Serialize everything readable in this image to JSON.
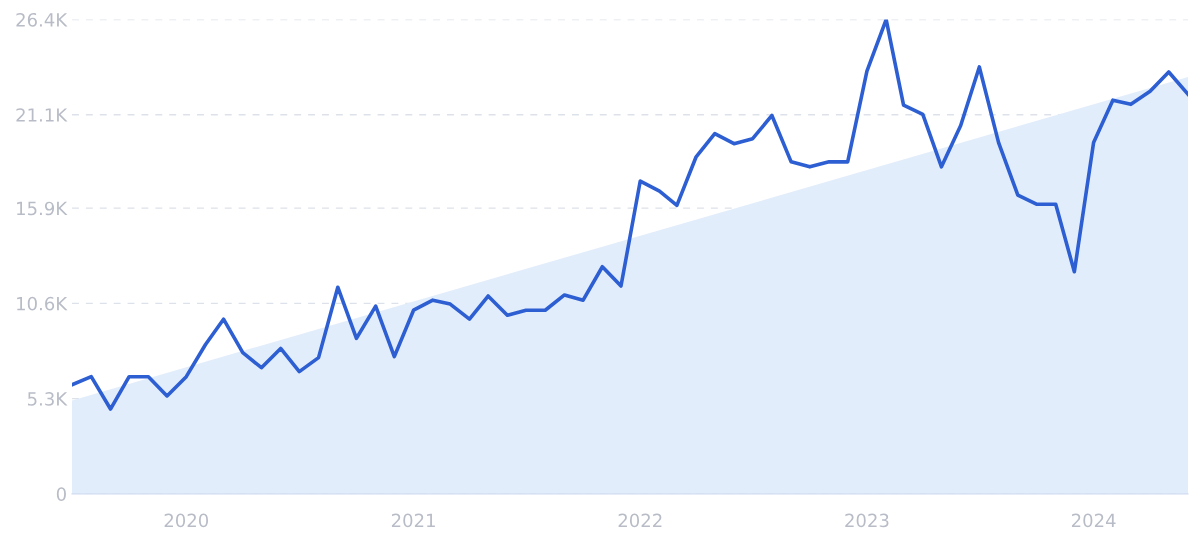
{
  "chart_data": {
    "type": "line",
    "x": [
      "2019-07",
      "2019-08",
      "2019-09",
      "2019-10",
      "2019-11",
      "2019-12",
      "2020-01",
      "2020-02",
      "2020-03",
      "2020-04",
      "2020-05",
      "2020-06",
      "2020-07",
      "2020-08",
      "2020-09",
      "2020-10",
      "2020-11",
      "2020-12",
      "2021-01",
      "2021-02",
      "2021-03",
      "2021-04",
      "2021-05",
      "2021-06",
      "2021-07",
      "2021-08",
      "2021-09",
      "2021-10",
      "2021-11",
      "2021-12",
      "2022-01",
      "2022-02",
      "2022-03",
      "2022-04",
      "2022-05",
      "2022-06",
      "2022-07",
      "2022-08",
      "2022-09",
      "2022-10",
      "2022-11",
      "2022-12",
      "2023-01",
      "2023-02",
      "2023-03",
      "2023-04",
      "2023-05",
      "2023-06",
      "2023-07",
      "2023-08",
      "2023-09",
      "2023-10",
      "2023-11",
      "2023-12",
      "2024-01",
      "2024-02",
      "2024-03",
      "2024-04",
      "2024-05",
      "2024-06"
    ],
    "series": [
      {
        "type": "area",
        "color": "#e2edfb",
        "x": [
          "2019-07",
          "2024-06"
        ],
        "values": [
          5200,
          23200
        ]
      },
      {
        "color": "#2d5fd3",
        "values": [
          6070,
          6520,
          4720,
          6520,
          6520,
          5450,
          6520,
          8310,
          9720,
          7860,
          7020,
          8090,
          6800,
          7580,
          11500,
          8650,
          10450,
          7640,
          10220,
          10780,
          10560,
          9720,
          11010,
          9940,
          10220,
          10220,
          11070,
          10780,
          12640,
          11570,
          17410,
          16850,
          16060,
          18760,
          20050,
          19490,
          19770,
          21060,
          18480,
          18200,
          18480,
          18480,
          23530,
          26400,
          21630,
          21120,
          18200,
          20500,
          23760,
          19550,
          16630,
          16120,
          16120,
          12360,
          19550,
          21910,
          21680,
          22410,
          23480,
          22240
        ]
      }
    ],
    "xlim": [
      "2019-07",
      "2024-06"
    ],
    "xticks": [
      {
        "value": "2020-01",
        "label": "2020"
      },
      {
        "value": "2021-01",
        "label": "2021"
      },
      {
        "value": "2022-01",
        "label": "2022"
      },
      {
        "value": "2023-01",
        "label": "2023"
      },
      {
        "value": "2024-01",
        "label": "2024"
      }
    ],
    "ylim": [
      0,
      26400
    ],
    "yticks": [
      {
        "value": 0,
        "label": "0"
      },
      {
        "value": 5300,
        "label": "5.3K"
      },
      {
        "value": 10600,
        "label": "10.6K"
      },
      {
        "value": 15900,
        "label": "15.9K"
      },
      {
        "value": 21100,
        "label": "21.1K"
      },
      {
        "value": 26400,
        "label": "26.4K"
      }
    ],
    "grid": "y",
    "line_style": "solid",
    "marker": "none"
  }
}
